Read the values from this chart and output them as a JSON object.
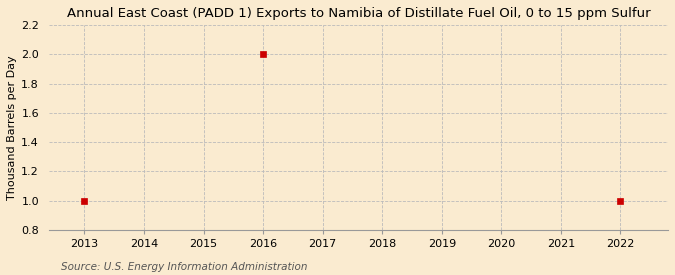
{
  "title": "Annual East Coast (PADD 1) Exports to Namibia of Distillate Fuel Oil, 0 to 15 ppm Sulfur",
  "ylabel": "Thousand Barrels per Day",
  "source": "Source: U.S. Energy Information Administration",
  "background_color": "#faebd0",
  "plot_bg_color": "#faebd0",
  "data_x": [
    2013,
    2016,
    2022
  ],
  "data_y": [
    1.0,
    2.0,
    1.0
  ],
  "marker_color": "#cc0000",
  "marker_size": 4,
  "xlim": [
    2012.4,
    2022.8
  ],
  "ylim": [
    0.8,
    2.2
  ],
  "xticks": [
    2013,
    2014,
    2015,
    2016,
    2017,
    2018,
    2019,
    2020,
    2021,
    2022
  ],
  "yticks": [
    0.8,
    1.0,
    1.2,
    1.4,
    1.6,
    1.8,
    2.0,
    2.2
  ],
  "grid_color": "#bbbbbb",
  "grid_style": "--",
  "grid_linewidth": 0.6,
  "title_fontsize": 9.5,
  "label_fontsize": 8,
  "tick_fontsize": 8,
  "source_fontsize": 7.5
}
